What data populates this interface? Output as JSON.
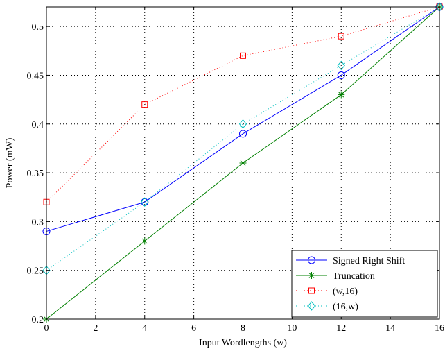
{
  "chart_data": {
    "type": "line",
    "title": "",
    "xlabel": "Input Wordlengths (w)",
    "ylabel": "Power (mW)",
    "xlim": [
      0,
      16
    ],
    "ylim": [
      0.2,
      0.52
    ],
    "xticks": [
      0,
      2,
      4,
      6,
      8,
      10,
      12,
      14,
      16
    ],
    "yticks": [
      0.2,
      0.25,
      0.3,
      0.35,
      0.4,
      0.45,
      0.5
    ],
    "xtick_labels": [
      "0",
      "2",
      "4",
      "6",
      "8",
      "10",
      "12",
      "14",
      "16"
    ],
    "ytick_labels": [
      "0.2",
      "0.25",
      "0.3",
      "0.35",
      "0.4",
      "0.45",
      "0.5"
    ],
    "grid": true,
    "legend_position": "bottom-right",
    "x": [
      0,
      4,
      8,
      12,
      16
    ],
    "series": [
      {
        "name": "Signed Right Shift",
        "values": [
          0.29,
          0.32,
          0.39,
          0.45,
          0.52
        ],
        "color": "#0000ff",
        "line": "solid",
        "marker": "circle"
      },
      {
        "name": "Truncation",
        "values": [
          0.2,
          0.28,
          0.36,
          0.43,
          0.52
        ],
        "color": "#008000",
        "line": "solid",
        "marker": "asterisk"
      },
      {
        "name": "(w,16)",
        "values": [
          0.32,
          0.42,
          0.47,
          0.49,
          0.52
        ],
        "color": "#ff0000",
        "line": "dotted",
        "marker": "square"
      },
      {
        "name": "(16,w)",
        "values": [
          0.25,
          0.32,
          0.4,
          0.46,
          0.52
        ],
        "color": "#00bfbf",
        "line": "dotted",
        "marker": "diamond"
      }
    ]
  }
}
